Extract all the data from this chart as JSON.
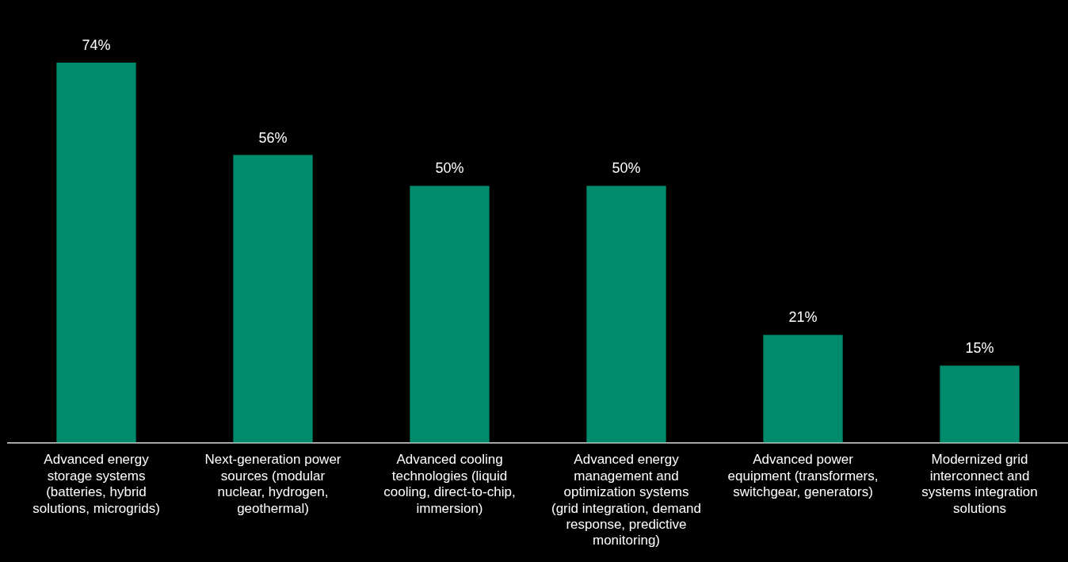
{
  "chart_data": {
    "type": "bar",
    "categories": [
      "Advanced energy storage systems (batteries, hybrid solutions, microgrids)",
      "Next-generation power sources (modular nuclear, hydrogen, geothermal)",
      "Advanced cooling technologies (liquid cooling, direct-to-chip, immersion)",
      "Advanced energy management and optimization systems (grid integration, demand response, predictive monitoring)",
      "Advanced power equipment (transformers, switchgear, generators)",
      "Modernized grid interconnect and systems integration solutions"
    ],
    "values": [
      74,
      56,
      50,
      50,
      21,
      15
    ],
    "value_labels": [
      "74%",
      "56%",
      "50%",
      "50%",
      "21%",
      "15%"
    ],
    "color": "#008b6c",
    "grid": false,
    "legend": false
  }
}
